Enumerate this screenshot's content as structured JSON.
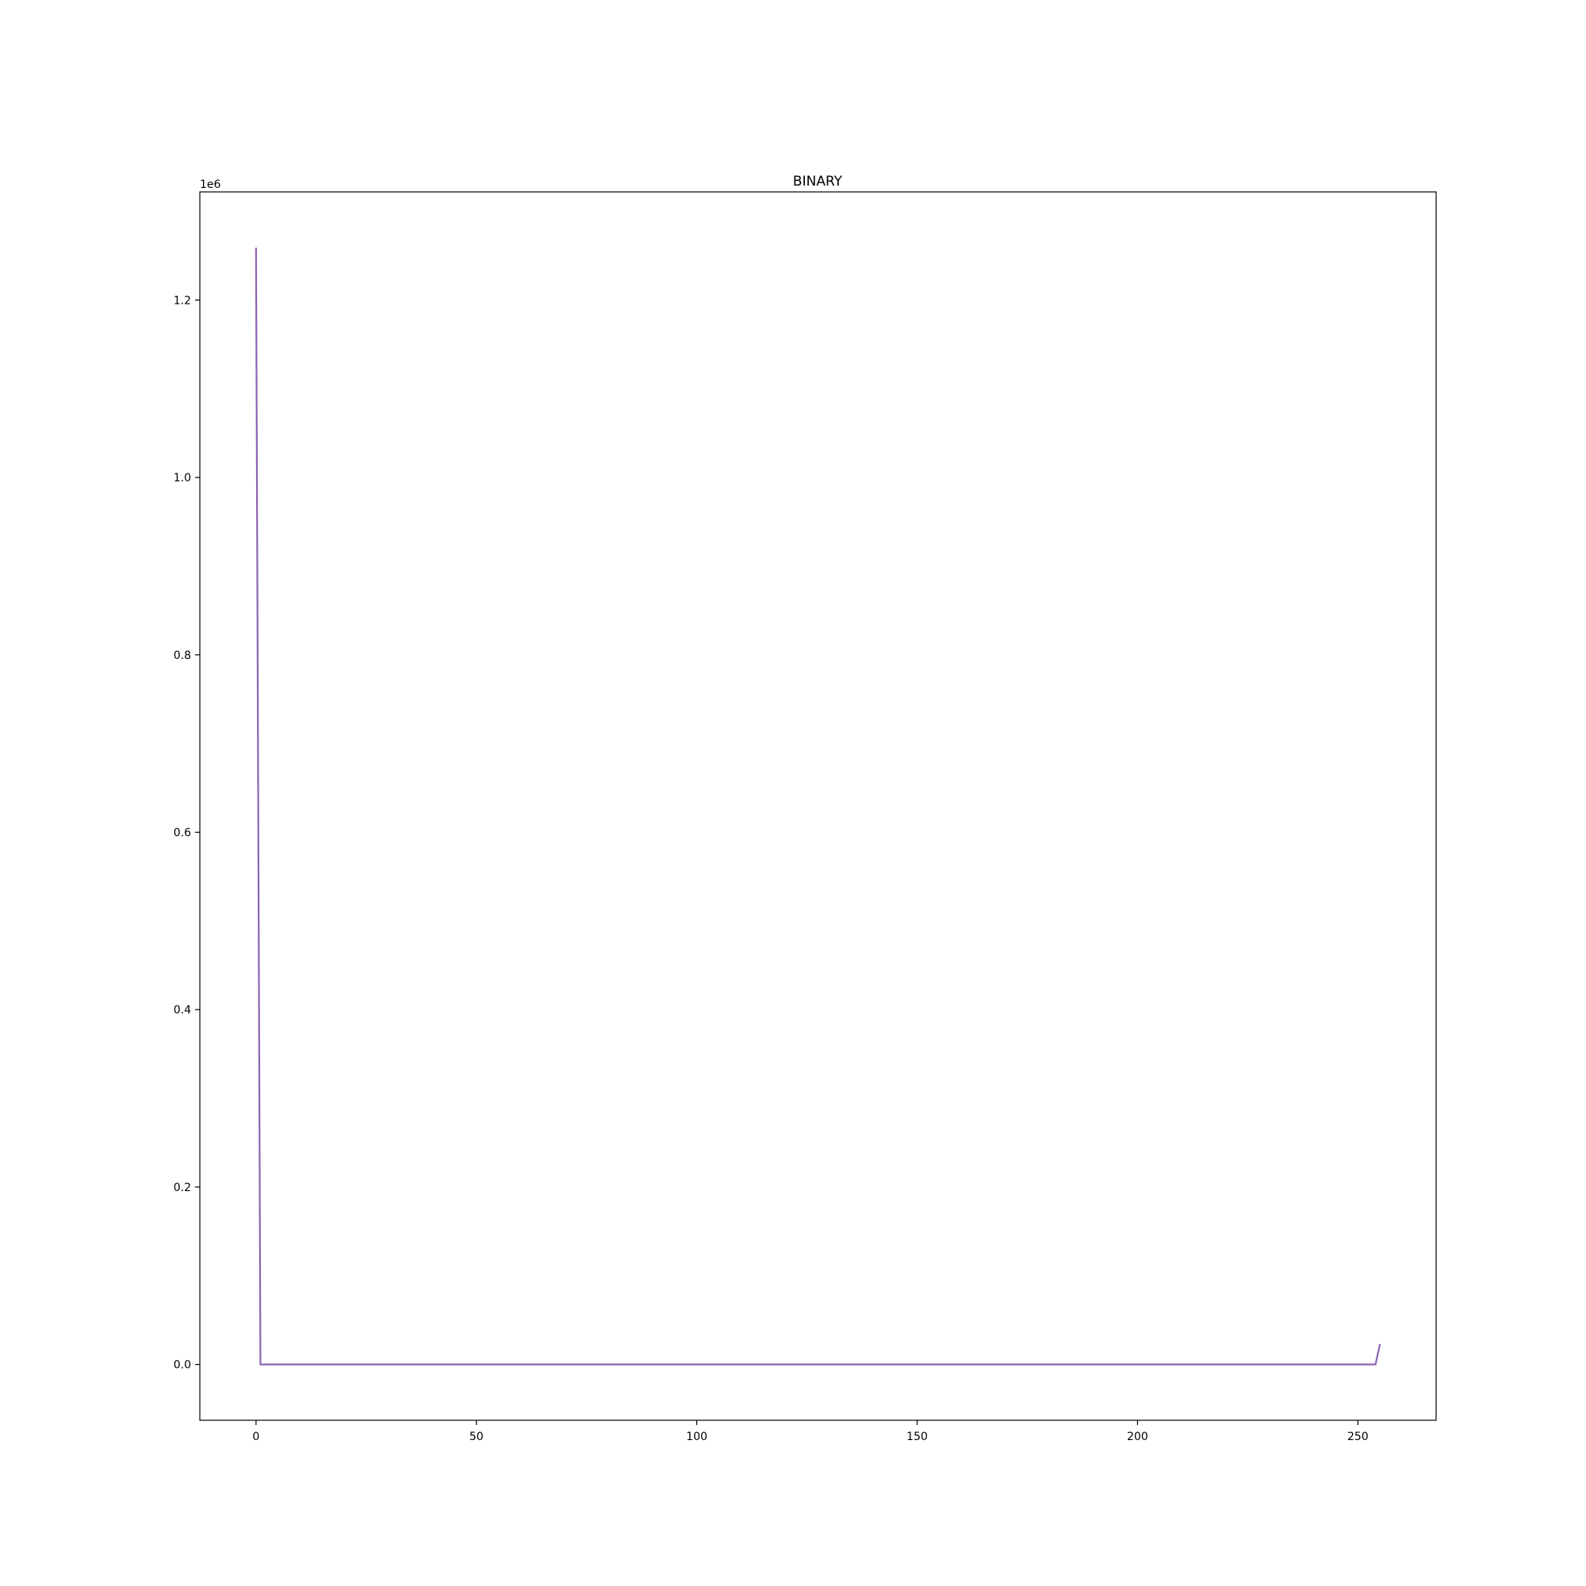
{
  "chart_data": {
    "type": "line",
    "title": "BINARY",
    "xlabel": "",
    "ylabel": "",
    "y_offset_label": "1e6",
    "xlim": [
      -12.75,
      267.75
    ],
    "ylim": [
      -62950,
      1321950
    ],
    "x_ticks": [
      {
        "value": 0,
        "label": "0"
      },
      {
        "value": 50,
        "label": "50"
      },
      {
        "value": 100,
        "label": "100"
      },
      {
        "value": 150,
        "label": "150"
      },
      {
        "value": 200,
        "label": "200"
      },
      {
        "value": 250,
        "label": "250"
      }
    ],
    "y_ticks": [
      {
        "value": 0,
        "label": "0.0"
      },
      {
        "value": 200000,
        "label": "0.2"
      },
      {
        "value": 400000,
        "label": "0.4"
      },
      {
        "value": 600000,
        "label": "0.6"
      },
      {
        "value": 800000,
        "label": "0.8"
      },
      {
        "value": 1000000,
        "label": "1.0"
      },
      {
        "value": 1200000,
        "label": "1.2"
      }
    ],
    "grid": false,
    "series": [
      {
        "color": "#8c63b0",
        "points": [
          [
            0,
            1259000
          ],
          [
            1,
            0
          ],
          [
            254,
            0
          ],
          [
            255,
            23000
          ]
        ]
      }
    ]
  }
}
